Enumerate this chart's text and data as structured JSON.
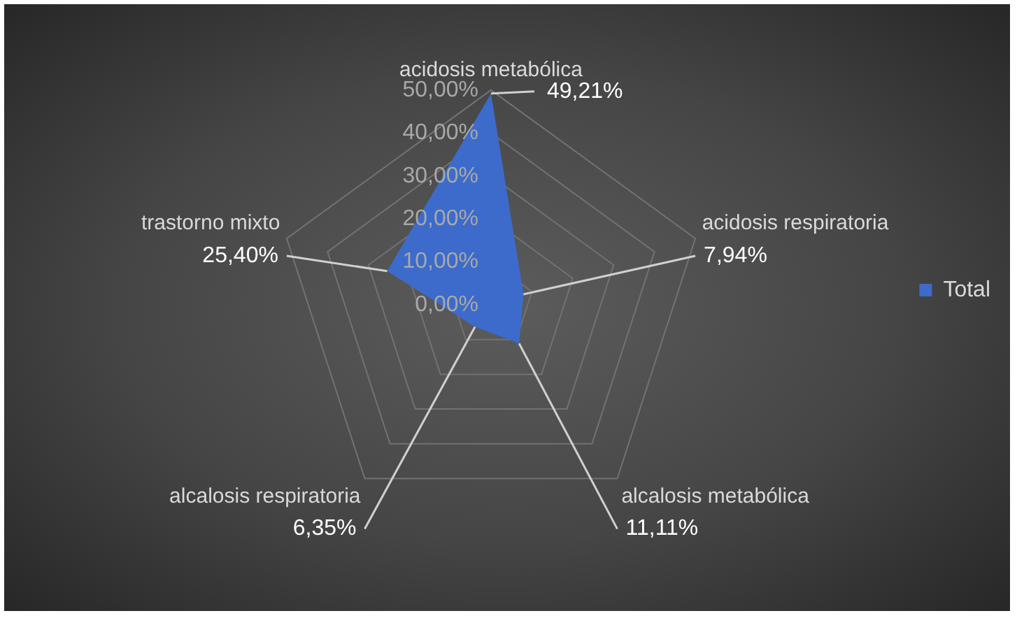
{
  "chart_data": {
    "type": "radar",
    "categories": [
      "acidosis metabólica",
      "acidosis respiratoria",
      "alcalosis metabólica",
      "alcalosis respiratoria",
      "trastorno mixto"
    ],
    "series": [
      {
        "name": "Total",
        "color": "#3d6bcb",
        "values": [
          49.21,
          7.94,
          11.11,
          6.35,
          25.4
        ],
        "value_labels": [
          "49,21%",
          "7,94%",
          "11,11%",
          "6,35%",
          "25,40%"
        ]
      }
    ],
    "ylim": [
      0,
      50
    ],
    "yticks": [
      {
        "value": 0,
        "label": "0,00%"
      },
      {
        "value": 10,
        "label": "10,00%"
      },
      {
        "value": 20,
        "label": "20,00%"
      },
      {
        "value": 30,
        "label": "30,00%"
      },
      {
        "value": 40,
        "label": "40,00%"
      },
      {
        "value": 50,
        "label": "50,00%"
      }
    ],
    "grid": true,
    "legend": "right",
    "marker": "none"
  }
}
